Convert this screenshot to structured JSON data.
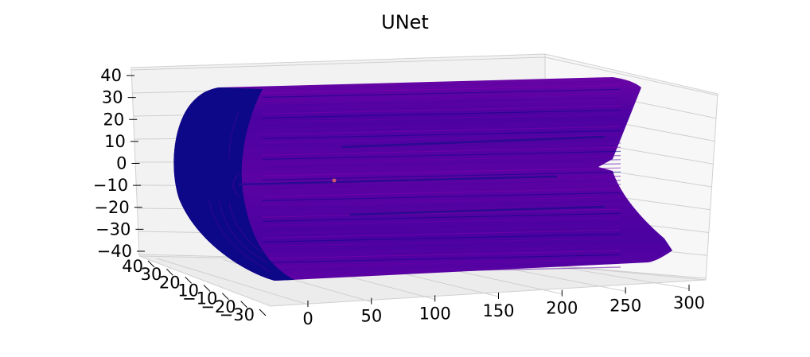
{
  "chart_data": {
    "type": "surface3d",
    "title": "UNet",
    "xlabel": "",
    "ylabel": "",
    "zlabel": "",
    "grid": true,
    "colormap": "plasma",
    "colors": {
      "surface_base": "#0d0887",
      "surface_mid": "#5b02a3",
      "surface_high": "#7e03a8",
      "pane": "#f2f2f2",
      "grid": "#cccccc"
    },
    "x_ticks": [
      "0",
      "50",
      "100",
      "150",
      "200",
      "250",
      "300"
    ],
    "y_ticks": [
      "40",
      "30",
      "20",
      "10",
      "−10",
      "−20",
      "−30"
    ],
    "z_ticks": [
      "40",
      "30",
      "20",
      "10",
      "0",
      "−10",
      "−20",
      "−30",
      "−40"
    ],
    "xlim": [
      0,
      300
    ],
    "ylim": [
      -30,
      40
    ],
    "zlim": [
      -40,
      40
    ],
    "description_values": {
      "cylinder_radius": 40,
      "cylinder_length": 300
    }
  }
}
